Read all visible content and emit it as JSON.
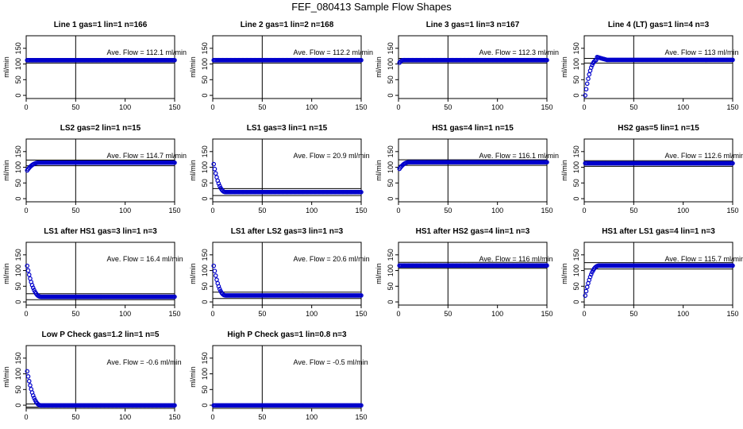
{
  "figure": {
    "title": "FEF_080413  Sample Flow Shapes"
  },
  "chart_data": [
    {
      "type": "scatter",
      "title": "Line 1 gas=1 lin=1 n=166",
      "ylabel": "ml/min",
      "annotation": "Ave. Flow =  112.1  ml/min",
      "avg": 112.1,
      "xlim": [
        0,
        150
      ],
      "ylim": [
        -10,
        190
      ],
      "xticks": [
        0,
        50,
        100,
        150
      ],
      "yticks": [
        0,
        50,
        100,
        150
      ],
      "vline": 50,
      "hlines": [
        103,
        118
      ],
      "shape": {
        "n": 150,
        "plateau": 112.1,
        "start": 112.1,
        "settle": 1
      }
    },
    {
      "type": "scatter",
      "title": "Line 2 gas=1 lin=2 n=168",
      "ylabel": "ml/min",
      "annotation": "Ave. Flow =  112.2  ml/min",
      "avg": 112.2,
      "xlim": [
        0,
        150
      ],
      "ylim": [
        -10,
        190
      ],
      "xticks": [
        0,
        50,
        100,
        150
      ],
      "yticks": [
        0,
        50,
        100,
        150
      ],
      "vline": 50,
      "hlines": [
        103,
        118
      ],
      "shape": {
        "n": 150,
        "plateau": 112.2,
        "start": 112.2,
        "settle": 1
      }
    },
    {
      "type": "scatter",
      "title": "Line 3 gas=1 lin=3 n=167",
      "ylabel": "ml/min",
      "annotation": "Ave. Flow =  112.3  ml/min",
      "avg": 112.3,
      "xlim": [
        0,
        150
      ],
      "ylim": [
        -10,
        190
      ],
      "xticks": [
        0,
        50,
        100,
        150
      ],
      "yticks": [
        0,
        50,
        100,
        150
      ],
      "vline": 50,
      "hlines": [
        103,
        118
      ],
      "shape": {
        "n": 150,
        "plateau": 112.3,
        "start": 104,
        "settle": 4
      }
    },
    {
      "type": "scatter",
      "title": "Line 4 (LT) gas=1 lin=4 n=3",
      "ylabel": "ml/min",
      "annotation": "Ave. Flow =  113  ml/min",
      "avg": 113,
      "xlim": [
        0,
        150
      ],
      "ylim": [
        -10,
        190
      ],
      "xticks": [
        0,
        50,
        100,
        150
      ],
      "yticks": [
        0,
        50,
        100,
        150
      ],
      "vline": 50,
      "hlines": [
        103,
        118
      ],
      "shape": {
        "n": 150,
        "plateau": 113,
        "start": 0,
        "settle": 12,
        "overshoot": 9
      }
    },
    {
      "type": "scatter",
      "title": "LS2 gas=2 lin=1 n=15",
      "ylabel": "ml/min",
      "annotation": "Ave. Flow =  114.7  ml/min",
      "avg": 114.7,
      "xlim": [
        0,
        150
      ],
      "ylim": [
        -10,
        190
      ],
      "xticks": [
        0,
        50,
        100,
        150
      ],
      "yticks": [
        0,
        50,
        100,
        150
      ],
      "vline": 50,
      "hlines": [
        105,
        123
      ],
      "shape": {
        "n": 150,
        "plateau": 114.7,
        "start": 90,
        "settle": 12
      }
    },
    {
      "type": "scatter",
      "title": "LS1 gas=3 lin=1 n=15",
      "ylabel": "ml/min",
      "annotation": "Ave. Flow =  20.9  ml/min",
      "avg": 20.9,
      "xlim": [
        0,
        150
      ],
      "ylim": [
        -10,
        190
      ],
      "xticks": [
        0,
        50,
        100,
        150
      ],
      "yticks": [
        0,
        50,
        100,
        150
      ],
      "vline": 50,
      "hlines": [
        10,
        32
      ],
      "shape": {
        "n": 150,
        "plateau": 20.9,
        "start": 110,
        "settle": 12
      }
    },
    {
      "type": "scatter",
      "title": "HS1 gas=4 lin=1 n=15",
      "ylabel": "ml/min",
      "annotation": "Ave. Flow =  116.1  ml/min",
      "avg": 116.1,
      "xlim": [
        0,
        150
      ],
      "ylim": [
        -10,
        190
      ],
      "xticks": [
        0,
        50,
        100,
        150
      ],
      "yticks": [
        0,
        50,
        100,
        150
      ],
      "vline": 50,
      "hlines": [
        106,
        124
      ],
      "shape": {
        "n": 150,
        "plateau": 116.1,
        "start": 95,
        "settle": 10
      }
    },
    {
      "type": "scatter",
      "title": "HS2 gas=5 lin=1 n=15",
      "ylabel": "ml/min",
      "annotation": "Ave. Flow =  112.6  ml/min",
      "avg": 112.6,
      "xlim": [
        0,
        150
      ],
      "ylim": [
        -10,
        190
      ],
      "xticks": [
        0,
        50,
        100,
        150
      ],
      "yticks": [
        0,
        50,
        100,
        150
      ],
      "vline": 50,
      "hlines": [
        103,
        121
      ],
      "shape": {
        "n": 150,
        "plateau": 112.6,
        "start": 112.6,
        "settle": 1
      }
    },
    {
      "type": "scatter",
      "title": "LS1 after HS1 gas=3 lin=1 n=3",
      "ylabel": "ml/min",
      "annotation": "Ave. Flow =  16.4  ml/min",
      "avg": 16.4,
      "xlim": [
        0,
        150
      ],
      "ylim": [
        -10,
        190
      ],
      "xticks": [
        0,
        50,
        100,
        150
      ],
      "yticks": [
        0,
        50,
        100,
        150
      ],
      "vline": 50,
      "hlines": [
        7,
        26
      ],
      "shape": {
        "n": 150,
        "plateau": 16.4,
        "start": 115,
        "settle": 14
      }
    },
    {
      "type": "scatter",
      "title": "LS1 after LS2 gas=3 lin=1 n=3",
      "ylabel": "ml/min",
      "annotation": "Ave. Flow =  20.6  ml/min",
      "avg": 20.6,
      "xlim": [
        0,
        150
      ],
      "ylim": [
        -10,
        190
      ],
      "xticks": [
        0,
        50,
        100,
        150
      ],
      "yticks": [
        0,
        50,
        100,
        150
      ],
      "vline": 50,
      "hlines": [
        11,
        31
      ],
      "shape": {
        "n": 150,
        "plateau": 20.6,
        "start": 115,
        "settle": 12
      }
    },
    {
      "type": "scatter",
      "title": "HS1 after HS2 gas=4 lin=1 n=3",
      "ylabel": "ml/min",
      "annotation": "Ave. Flow =  116  ml/min",
      "avg": 116,
      "xlim": [
        0,
        150
      ],
      "ylim": [
        -10,
        190
      ],
      "xticks": [
        0,
        50,
        100,
        150
      ],
      "yticks": [
        0,
        50,
        100,
        150
      ],
      "vline": 50,
      "hlines": [
        107,
        126
      ],
      "shape": {
        "n": 150,
        "plateau": 116,
        "start": 116,
        "settle": 1
      }
    },
    {
      "type": "scatter",
      "title": "HS1 after LS1 gas=4 lin=1 n=3",
      "ylabel": "ml/min",
      "annotation": "Ave. Flow =  115.7  ml/min",
      "avg": 115.7,
      "xlim": [
        0,
        150
      ],
      "ylim": [
        -10,
        190
      ],
      "xticks": [
        0,
        50,
        100,
        150
      ],
      "yticks": [
        0,
        50,
        100,
        150
      ],
      "vline": 50,
      "hlines": [
        105,
        125
      ],
      "shape": {
        "n": 150,
        "plateau": 115.7,
        "start": 20,
        "settle": 14
      }
    },
    {
      "type": "scatter",
      "title": "Low P Check gas=1.2 lin=1 n=5",
      "ylabel": "ml/min",
      "annotation": "Ave. Flow =  -0.6  ml/min",
      "avg": -0.6,
      "xlim": [
        0,
        150
      ],
      "ylim": [
        -10,
        190
      ],
      "xticks": [
        0,
        50,
        100,
        150
      ],
      "yticks": [
        0,
        50,
        100,
        150
      ],
      "vline": 50,
      "hlines": [
        -6,
        4
      ],
      "shape": {
        "n": 150,
        "plateau": -0.6,
        "start": 108,
        "settle": 14
      }
    },
    {
      "type": "scatter",
      "title": "High P Check gas=1 lin=0.8 n=3",
      "ylabel": "ml/min",
      "annotation": "Ave. Flow =  -0.5  ml/min",
      "avg": -0.5,
      "xlim": [
        0,
        150
      ],
      "ylim": [
        -10,
        190
      ],
      "xticks": [
        0,
        50,
        100,
        150
      ],
      "yticks": [
        0,
        50,
        100,
        150
      ],
      "vline": 50,
      "hlines": [
        -5,
        4
      ],
      "shape": {
        "n": 150,
        "plateau": -0.5,
        "start": -0.5,
        "settle": 1
      }
    }
  ]
}
